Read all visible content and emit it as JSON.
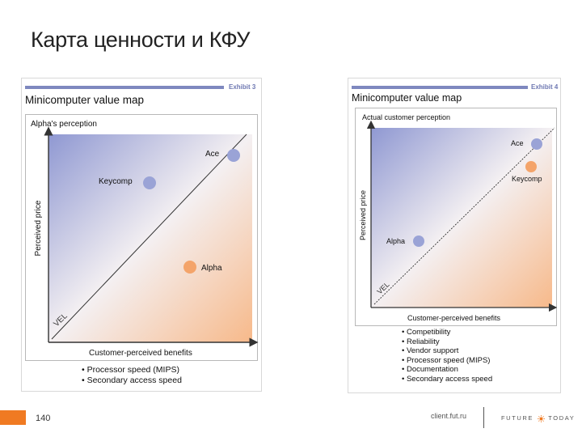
{
  "slide": {
    "title": "Карта ценности и КФУ"
  },
  "exhibits": [
    {
      "number": "Exhibit 3",
      "heading": "Minicomputer value map",
      "panel_label": "Alpha's perception",
      "y_axis_label": "Perceived price",
      "x_axis_label": "Customer-perceived benefits",
      "line_label": "VEL",
      "points": [
        {
          "name": "Ace",
          "color": "#9aa3d6"
        },
        {
          "name": "Keycomp",
          "color": "#9aa3d6"
        },
        {
          "name": "Alpha",
          "color": "#f4a46a"
        }
      ],
      "bullets": [
        "• Processor speed (MIPS)",
        "• Secondary access speed"
      ]
    },
    {
      "number": "Exhibit 4",
      "heading": "Minicomputer value map",
      "panel_label": "Actual customer perception",
      "y_axis_label": "Perceived price",
      "x_axis_label": "Customer-perceived benefits",
      "line_label": "VEL",
      "points": [
        {
          "name": "Ace",
          "color": "#9aa3d6"
        },
        {
          "name": "Keycomp",
          "color": "#f4a46a"
        },
        {
          "name": "Alpha",
          "color": "#9aa3d6"
        }
      ],
      "bullets": [
        "• Competibility",
        "• Reliability",
        "• Vendor support",
        "• Processor speed (MIPS)",
        "• Documentation",
        "• Secondary access speed"
      ]
    }
  ],
  "footer": {
    "page_number": "140",
    "link": "client.fut.ru",
    "logo_left": "FUTURE",
    "logo_right": "TODAY"
  },
  "colors": {
    "gradient_blue": "#8f98d2",
    "gradient_orange": "#f7b98a",
    "accent_orange": "#f07a22"
  }
}
